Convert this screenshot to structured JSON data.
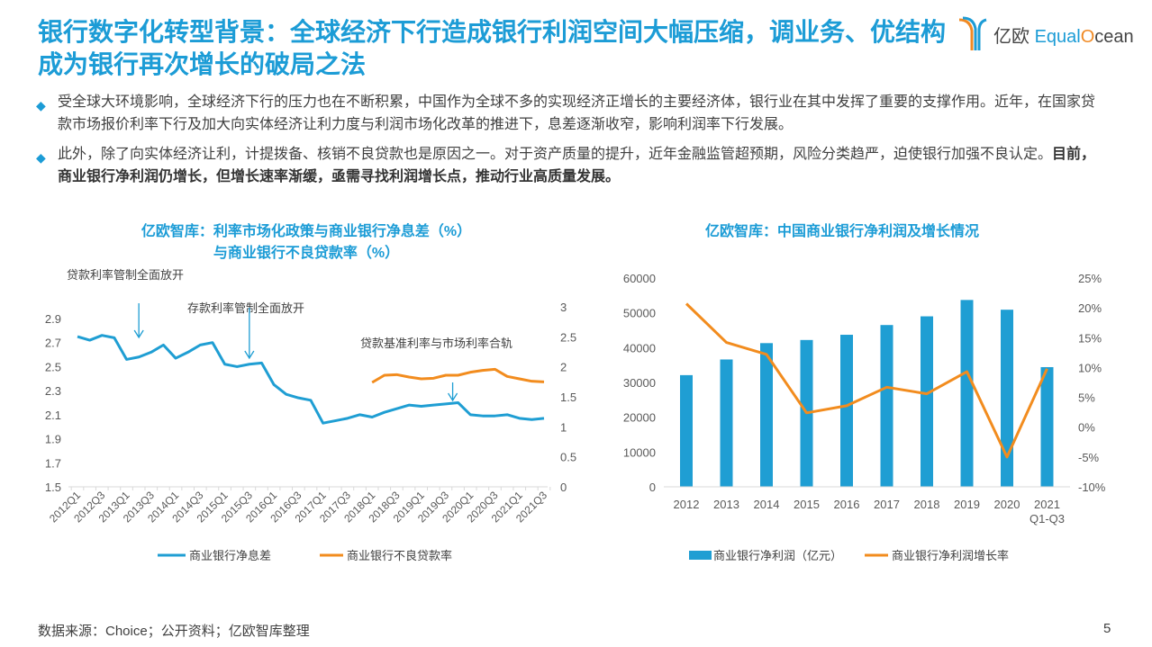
{
  "header": {
    "title": "银行数字化转型背景：全球经济下行造成银行利润空间大幅压缩，调业务、优结构成为银行再次增长的破局之法",
    "logo_cn": "亿欧",
    "logo_en_a": "Equal",
    "logo_en_b": "O",
    "logo_en_c": "cean"
  },
  "bullets": [
    {
      "text": "受全球大环境影响，全球经济下行的压力也在不断积累，中国作为全球不多的实现经济正增长的主要经济体，银行业在其中发挥了重要的支撑作用。近年，在国家贷款市场报价利率下行及加大向实体经济让利力度与利润市场化改革的推进下，息差逐渐收窄，影响利润率下行发展。",
      "bold": ""
    },
    {
      "text": "此外，除了向实体经济让利，计提拨备、核销不良贷款也是原因之一。对于资产质量的提升，近年金融监管超预期，风险分类趋严，迫使银行加强不良认定。",
      "bold": "目前，商业银行净利润仍增长，但增长速率渐缓，亟需寻找利润增长点，推动行业高质量发展。"
    }
  ],
  "colors": {
    "accent": "#1c9cd6",
    "blue_series": "#1f9ed3",
    "orange_series": "#f28c1e"
  },
  "chart_data": [
    {
      "type": "line",
      "title_line1": "亿欧智库：利率市场化政策与商业银行净息差（%）",
      "title_line2": "与商业银行不良贷款率（%）",
      "categories": [
        "2012Q1",
        "2012Q2",
        "2012Q3",
        "2012Q4",
        "2013Q1",
        "2013Q2",
        "2013Q3",
        "2013Q4",
        "2014Q1",
        "2014Q2",
        "2014Q3",
        "2014Q4",
        "2015Q1",
        "2015Q2",
        "2015Q3",
        "2015Q4",
        "2016Q1",
        "2016Q2",
        "2016Q3",
        "2016Q4",
        "2017Q1",
        "2017Q2",
        "2017Q3",
        "2017Q4",
        "2018Q1",
        "2018Q2",
        "2018Q3",
        "2018Q4",
        "2019Q1",
        "2019Q2",
        "2019Q3",
        "2019Q4",
        "2020Q1",
        "2020Q2",
        "2020Q3",
        "2020Q4",
        "2021Q1",
        "2021Q2",
        "2021Q3"
      ],
      "tick_labels": [
        "2012Q1",
        "2012Q3",
        "2013Q1",
        "2013Q3",
        "2014Q1",
        "2014Q3",
        "2015Q1",
        "2015Q3",
        "2016Q1",
        "2016Q3",
        "2017Q1",
        "2017Q3",
        "2018Q1",
        "2018Q3",
        "2019Q1",
        "2019Q3",
        "2020Q1",
        "2020Q3",
        "2021Q1",
        "2021Q3"
      ],
      "series": [
        {
          "name": "商业银行净息差",
          "axis": "left",
          "values": [
            2.75,
            2.72,
            2.76,
            2.74,
            2.56,
            2.58,
            2.62,
            2.68,
            2.57,
            2.62,
            2.68,
            2.7,
            2.52,
            2.5,
            2.52,
            2.53,
            2.35,
            2.27,
            2.24,
            2.22,
            2.03,
            2.05,
            2.07,
            2.1,
            2.08,
            2.12,
            2.15,
            2.18,
            2.17,
            2.18,
            2.19,
            2.2,
            2.1,
            2.09,
            2.09,
            2.1,
            2.07,
            2.06,
            2.07
          ]
        },
        {
          "name": "商业银行不良贷款率",
          "axis": "right",
          "values": [
            null,
            null,
            null,
            null,
            null,
            null,
            null,
            null,
            null,
            null,
            null,
            null,
            null,
            null,
            null,
            null,
            null,
            null,
            null,
            null,
            null,
            null,
            null,
            null,
            1.74,
            1.86,
            1.87,
            1.83,
            1.8,
            1.81,
            1.86,
            1.86,
            1.91,
            1.94,
            1.96,
            1.84,
            1.8,
            1.76,
            1.75
          ]
        }
      ],
      "y_left": {
        "range": [
          1.5,
          2.9
        ],
        "ticks": [
          "1.5",
          "1.7",
          "1.9",
          "2.1",
          "2.3",
          "2.5",
          "2.7",
          "2.9"
        ]
      },
      "y_right": {
        "range": [
          0,
          3
        ],
        "ticks": [
          "0",
          "0.5",
          "1",
          "1.5",
          "2",
          "2.5",
          "3"
        ]
      },
      "annotations": [
        {
          "text": "贷款利率管制全面放开",
          "at": "2013Q2"
        },
        {
          "text": "存款利率管制全面放开",
          "at": "2015Q3"
        },
        {
          "text": "贷款基准利率与市场利率合轨",
          "at": "2019Q4"
        }
      ],
      "legend": "bottom",
      "grid": false
    },
    {
      "type": "bar",
      "title": "亿欧智库：中国商业银行净利润及增长情况",
      "categories": [
        "2012",
        "2013",
        "2014",
        "2015",
        "2016",
        "2017",
        "2018",
        "2019",
        "2020",
        "2021"
      ],
      "category_sublabels": [
        "",
        "",
        "",
        "",
        "",
        "",
        "",
        "",
        "",
        "Q1-Q3"
      ],
      "series": [
        {
          "name": "商业银行净利润（亿元）",
          "type": "bar",
          "axis": "left",
          "values": [
            32100,
            36600,
            41300,
            42200,
            43700,
            46500,
            49000,
            53700,
            50900,
            34400
          ]
        },
        {
          "name": "商业银行净利润增长率",
          "type": "line",
          "axis": "right",
          "values": [
            20.7,
            14.2,
            12.2,
            2.4,
            3.6,
            6.7,
            5.6,
            9.3,
            -5.0,
            9.8
          ]
        }
      ],
      "y_left": {
        "range": [
          0,
          60000
        ],
        "ticks": [
          "0",
          "10000",
          "20000",
          "30000",
          "40000",
          "50000",
          "60000"
        ]
      },
      "y_right": {
        "range": [
          -10,
          25
        ],
        "ticks": [
          "-10%",
          "-5%",
          "0%",
          "5%",
          "10%",
          "15%",
          "20%",
          "25%"
        ]
      },
      "legend": "bottom",
      "grid": false
    }
  ],
  "footer": {
    "source": "数据来源：Choice；公开资料；亿欧智库整理",
    "page": "5"
  }
}
